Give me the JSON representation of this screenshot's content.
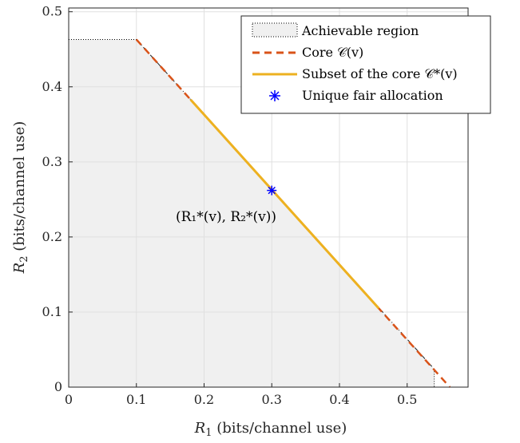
{
  "chart_data": {
    "type": "line",
    "xlim": [
      0,
      0.59
    ],
    "ylim": [
      0,
      0.505
    ],
    "xticks": [
      "0",
      "0.1",
      "0.2",
      "0.3",
      "0.4",
      "0.5"
    ],
    "yticks": [
      "0",
      "0.1",
      "0.2",
      "0.3",
      "0.4",
      "0.5"
    ],
    "xlabel": {
      "var": "R",
      "sub": "1",
      "rest": " (bits/channel use)"
    },
    "ylabel": {
      "var": "R",
      "sub": "2",
      "rest": " (bits/channel use)"
    },
    "grid": true,
    "legend_position": "top-right",
    "achievable_region": [
      [
        0,
        0
      ],
      [
        0,
        0.463
      ],
      [
        0.1,
        0.463
      ],
      [
        0.54,
        0.024
      ],
      [
        0.54,
        0
      ]
    ],
    "core": [
      [
        0.1,
        0.463
      ],
      [
        0.563,
        0
      ]
    ],
    "core_subset": [
      [
        0.18,
        0.383
      ],
      [
        0.458,
        0.105
      ]
    ],
    "fair_allocation": [
      0.3,
      0.262
    ],
    "series": [
      {
        "name": "Achievable region",
        "style": "dotted-fill",
        "color": "#f0f0f0"
      },
      {
        "name": "Core 𝒞(v)",
        "style": "dashed",
        "color": "#D95319"
      },
      {
        "name": "Subset of the core 𝒞*(v)",
        "style": "solid",
        "color": "#EDB120"
      },
      {
        "name": "Unique fair allocation",
        "style": "asterisk-marker",
        "color": "#0000FF"
      }
    ],
    "annotation": "(R₁*(v), R₂*(v))",
    "colors": {
      "region_fill": "#f0f0f0",
      "core": "#D95319",
      "subset": "#EDB120",
      "marker": "#0000FF",
      "grid": "#e0e0e0"
    }
  }
}
